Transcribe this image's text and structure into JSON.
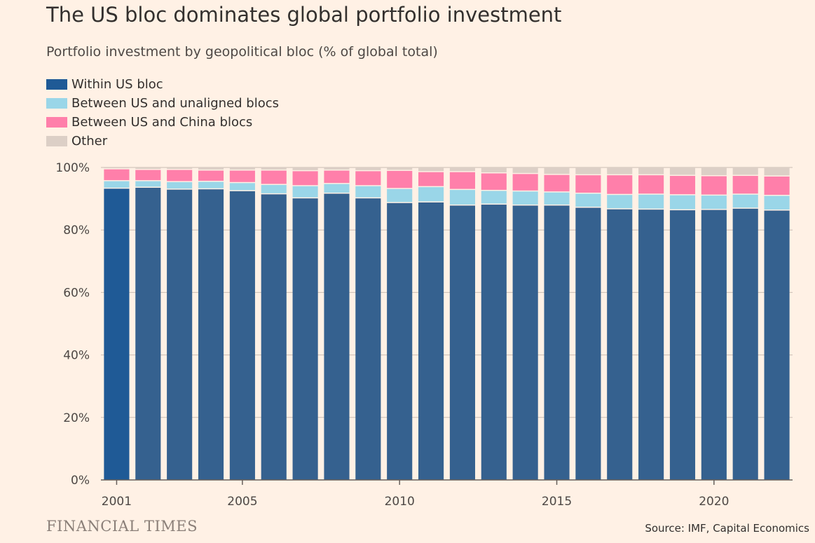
{
  "header": {
    "title": "The US bloc dominates global portfolio investment",
    "subtitle": "Portfolio investment by geopolitical bloc (% of global total)"
  },
  "footer": {
    "brand": "FINANCIAL TIMES",
    "source": "Source: IMF, Capital Economics"
  },
  "colors": {
    "background": "#FFF1E5",
    "within_us": "#1F5A96",
    "within_us_faded": "#35618F",
    "us_unaligned": "#9AD6E8",
    "us_china": "#FF7FAA",
    "other": "#DCCFC6",
    "grid": "#C9BDB4"
  },
  "chart_data": {
    "type": "bar",
    "stacked": true,
    "highlight_first_category": true,
    "categories": [
      2001,
      2002,
      2003,
      2004,
      2005,
      2006,
      2007,
      2008,
      2009,
      2010,
      2011,
      2012,
      2013,
      2014,
      2015,
      2016,
      2017,
      2018,
      2019,
      2020,
      2021,
      2022
    ],
    "x_tick_labels": [
      "2001",
      "2005",
      "2010",
      "2015",
      "2020"
    ],
    "series": [
      {
        "name": "Within US bloc",
        "color_key": "within_us",
        "values": [
          93.2,
          93.5,
          92.9,
          93.0,
          92.4,
          91.4,
          90.1,
          91.6,
          90.1,
          88.6,
          88.8,
          87.8,
          88.1,
          87.8,
          87.8,
          87.1,
          86.6,
          86.5,
          86.3,
          86.4,
          86.8,
          86.2
        ]
      },
      {
        "name": "Between US and unaligned blocs",
        "color_key": "us_unaligned",
        "values": [
          2.4,
          2.1,
          2.4,
          2.4,
          2.6,
          3.0,
          3.9,
          3.1,
          3.9,
          4.5,
          4.9,
          5.0,
          4.4,
          4.5,
          4.2,
          4.5,
          4.6,
          4.8,
          4.8,
          4.6,
          4.5,
          4.7
        ]
      },
      {
        "name": "Between US and China blocs",
        "color_key": "us_china",
        "values": [
          3.8,
          3.6,
          3.9,
          3.6,
          4.0,
          4.6,
          4.8,
          4.3,
          4.8,
          5.8,
          4.8,
          5.7,
          5.6,
          5.6,
          5.6,
          5.9,
          6.3,
          6.2,
          6.2,
          6.2,
          6.0,
          6.2
        ]
      },
      {
        "name": "Other",
        "color_key": "other",
        "values": [
          0.6,
          0.8,
          0.8,
          1.0,
          1.0,
          1.0,
          1.2,
          1.0,
          1.2,
          1.1,
          1.5,
          1.5,
          1.9,
          2.1,
          2.4,
          2.5,
          2.5,
          2.5,
          2.7,
          2.8,
          2.7,
          2.9
        ]
      }
    ],
    "ylim": [
      0,
      100
    ],
    "y_ticks": [
      0,
      20,
      40,
      60,
      80,
      100
    ],
    "y_tick_labels": [
      "0%",
      "20%",
      "40%",
      "60%",
      "80%",
      "100%"
    ],
    "grid": true,
    "legend_placement": "top-left"
  }
}
